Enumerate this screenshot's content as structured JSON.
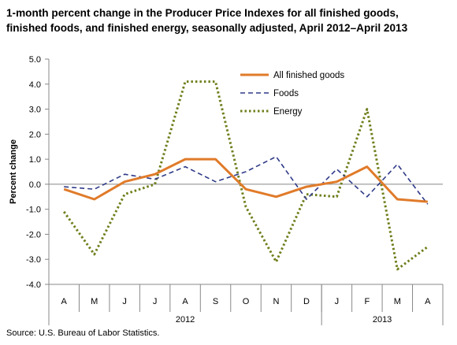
{
  "title_line1": "1-month percent change in the Producer Price Indexes for all finished goods,",
  "title_line2": "finished foods, and finished energy, seasonally adjusted, April 2012–April 2013",
  "source": "Source: U.S. Bureau of Labor Statistics.",
  "chart_data": {
    "type": "line",
    "ylabel": "Percent change",
    "ylim": [
      -4.0,
      5.0
    ],
    "yticks": [
      "5.0",
      "4.0",
      "3.0",
      "2.0",
      "1.0",
      "0.0",
      "-1.0",
      "-2.0",
      "-3.0",
      "-4.0"
    ],
    "ytick_values": [
      5,
      4,
      3,
      2,
      1,
      0,
      -1,
      -2,
      -3,
      -4
    ],
    "categories": [
      "A",
      "M",
      "J",
      "J",
      "A",
      "S",
      "O",
      "N",
      "D",
      "J",
      "F",
      "M",
      "A"
    ],
    "year_groups": [
      {
        "label": "2012",
        "count": 9
      },
      {
        "label": "2013",
        "count": 4
      }
    ],
    "legend_position": "top-right",
    "series": [
      {
        "name": "All finished goods",
        "color": "#e07b2a",
        "style": "solid",
        "values": [
          -0.2,
          -0.6,
          0.1,
          0.4,
          1.0,
          1.0,
          -0.2,
          -0.5,
          -0.1,
          0.1,
          0.7,
          -0.6,
          -0.7
        ]
      },
      {
        "name": "Foods",
        "color": "#2e3a87",
        "style": "dashed",
        "values": [
          -0.1,
          -0.2,
          0.4,
          0.2,
          0.7,
          0.1,
          0.5,
          1.1,
          -0.6,
          0.6,
          -0.5,
          0.8,
          -0.8
        ]
      },
      {
        "name": "Energy",
        "color": "#6e7f1c",
        "style": "dotted",
        "values": [
          -1.1,
          -2.8,
          -0.4,
          0.0,
          4.1,
          4.1,
          -0.9,
          -3.1,
          -0.4,
          -0.5,
          3.0,
          -3.4,
          -2.5
        ]
      }
    ]
  }
}
